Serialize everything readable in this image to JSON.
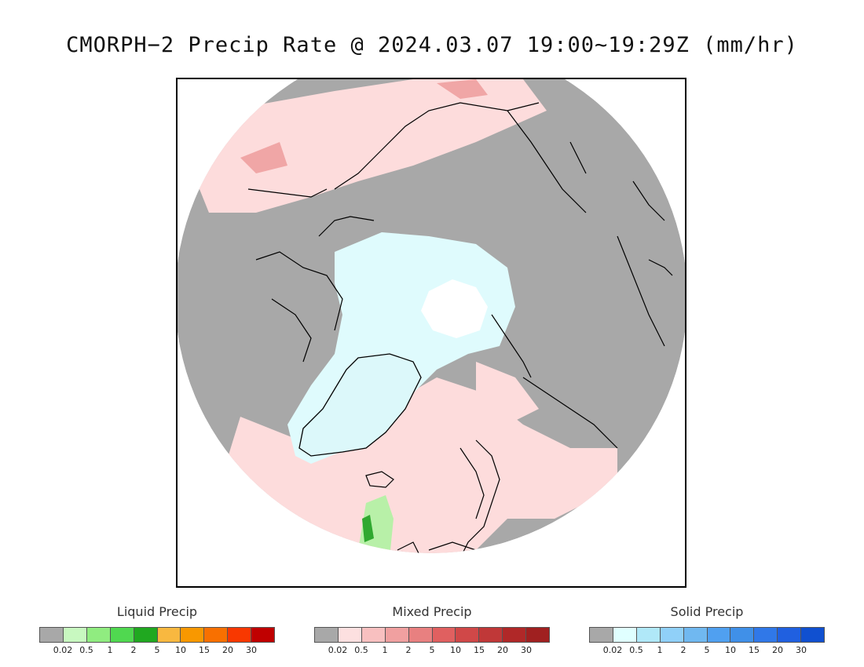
{
  "title": "CMORPH−2 Precip Rate @ 2024.03.07 19:00~19:29Z (mm/hr)",
  "map": {
    "projection": "north polar stereographic",
    "colors": {
      "land_no_precip": "#a8a8a8",
      "mixed_light": "#fddcdc",
      "solid_light": "#dffbfd",
      "snow_ice": "#ffffff",
      "liquid_green": "#b8f0a8",
      "coastline": "#000000"
    }
  },
  "legends": [
    {
      "title": "Liquid Precip",
      "colors": [
        "#a8a8a8",
        "#c8f8c0",
        "#90ec80",
        "#50d850",
        "#20a820",
        "#f8b840",
        "#f89800",
        "#f87000",
        "#f83800",
        "#c00000"
      ],
      "ticks": [
        "0.02",
        "0.5",
        "1",
        "2",
        "5",
        "10",
        "15",
        "20",
        "30"
      ]
    },
    {
      "title": "Mixed Precip",
      "colors": [
        "#a8a8a8",
        "#fde0e0",
        "#f8c0c0",
        "#f0a0a0",
        "#e88080",
        "#e06060",
        "#d04848",
        "#c03838",
        "#b02828",
        "#a02020"
      ],
      "ticks": [
        "0.02",
        "0.5",
        "1",
        "2",
        "5",
        "10",
        "15",
        "20",
        "30"
      ]
    },
    {
      "title": "Solid Precip",
      "colors": [
        "#a8a8a8",
        "#e0ffff",
        "#b0e8f8",
        "#90d0f8",
        "#70b8f0",
        "#50a0f0",
        "#4090e8",
        "#3078e8",
        "#2060e0",
        "#1050d0"
      ],
      "ticks": [
        "0.02",
        "0.5",
        "1",
        "2",
        "5",
        "10",
        "15",
        "20",
        "30"
      ]
    }
  ]
}
